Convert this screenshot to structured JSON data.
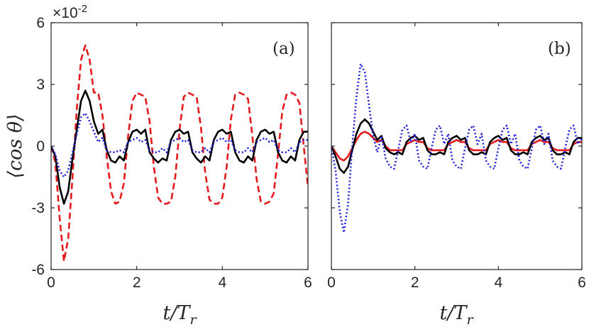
{
  "chart_data": [
    {
      "type": "line",
      "panel_label": "(a)",
      "ylabel": "⟨cos θ⟩",
      "xlabel_main": "t/T",
      "xlabel_sub": "r",
      "y_exponent_base": "×10",
      "y_exponent_power": "-2",
      "xlim": [
        0,
        6
      ],
      "ylim": [
        -6,
        6
      ],
      "x_ticks": [
        "0",
        "2",
        "4",
        "6"
      ],
      "y_ticks": [
        "6",
        "3",
        "0",
        "-3",
        "-6"
      ],
      "series": [
        {
          "name": "red-dashed",
          "color": "#e41a1c",
          "dash": "dashed",
          "x": [
            0,
            0.1,
            0.2,
            0.3,
            0.4,
            0.5,
            0.6,
            0.7,
            0.8,
            0.9,
            1.0,
            1.1,
            1.2,
            1.3,
            1.4,
            1.5,
            1.6,
            1.7,
            1.8,
            1.9,
            2.0,
            2.1,
            2.2,
            2.3,
            2.4,
            2.5,
            2.6,
            2.7,
            2.8,
            2.9,
            3.0,
            3.1,
            3.2,
            3.3,
            3.4,
            3.5,
            3.6,
            3.7,
            3.8,
            3.9,
            4.0,
            4.1,
            4.2,
            4.3,
            4.4,
            4.5,
            4.6,
            4.7,
            4.8,
            4.9,
            5.0,
            5.1,
            5.2,
            5.3,
            5.4,
            5.5,
            5.6,
            5.7,
            5.8,
            5.9,
            6.0
          ],
          "y": [
            0,
            -0.8,
            -3.5,
            -5.6,
            -4.5,
            -1.5,
            1.8,
            4.2,
            4.9,
            4.2,
            2.6,
            2.6,
            1.5,
            -0.5,
            -2.2,
            -2.8,
            -2.7,
            -1.8,
            0.5,
            2.2,
            2.6,
            2.5,
            2.4,
            1.2,
            -1.0,
            -2.5,
            -2.8,
            -2.8,
            -2.7,
            -1.5,
            0.8,
            2.4,
            2.6,
            2.5,
            2.4,
            0.9,
            -1.3,
            -2.6,
            -2.8,
            -2.8,
            -2.5,
            -1.0,
            1.3,
            2.5,
            2.6,
            2.5,
            2.3,
            0.5,
            -1.6,
            -2.7,
            -2.8,
            -2.7,
            -2.3,
            -0.4,
            1.7,
            2.5,
            2.6,
            2.5,
            2.1,
            0.0,
            -2.0
          ]
        },
        {
          "name": "black-solid",
          "color": "#000000",
          "dash": "solid",
          "x": [
            0,
            0.1,
            0.2,
            0.3,
            0.4,
            0.5,
            0.6,
            0.7,
            0.8,
            0.9,
            1.0,
            1.1,
            1.2,
            1.3,
            1.4,
            1.5,
            1.6,
            1.7,
            1.8,
            1.9,
            2.0,
            2.1,
            2.2,
            2.3,
            2.4,
            2.5,
            2.6,
            2.7,
            2.8,
            2.9,
            3.0,
            3.1,
            3.2,
            3.3,
            3.4,
            3.5,
            3.6,
            3.7,
            3.8,
            3.9,
            4.0,
            4.1,
            4.2,
            4.3,
            4.4,
            4.5,
            4.6,
            4.7,
            4.8,
            4.9,
            5.0,
            5.1,
            5.2,
            5.3,
            5.4,
            5.5,
            5.6,
            5.7,
            5.8,
            5.9,
            6.0
          ],
          "y": [
            0,
            -0.5,
            -2.0,
            -2.8,
            -2.2,
            -0.6,
            0.8,
            2.2,
            2.7,
            2.2,
            1.2,
            0.6,
            0.8,
            -0.2,
            -0.7,
            -0.8,
            -0.5,
            -0.7,
            0.2,
            0.7,
            0.8,
            0.6,
            0.8,
            -0.3,
            -0.6,
            -0.8,
            -0.6,
            -0.7,
            0.3,
            0.7,
            0.8,
            0.6,
            0.7,
            -0.3,
            -0.6,
            -0.8,
            -0.5,
            -0.7,
            0.3,
            0.7,
            0.8,
            0.6,
            0.7,
            -0.3,
            -0.7,
            -0.8,
            -0.5,
            -0.7,
            0.3,
            0.7,
            0.8,
            0.6,
            0.7,
            -0.3,
            -0.7,
            -0.8,
            -0.5,
            -0.7,
            0.3,
            0.7,
            0.7
          ]
        },
        {
          "name": "blue-dotted",
          "color": "#1f1fdc",
          "dash": "dotted",
          "x": [
            0,
            0.1,
            0.2,
            0.3,
            0.4,
            0.5,
            0.6,
            0.7,
            0.8,
            0.9,
            1.0,
            1.1,
            1.2,
            1.3,
            1.4,
            1.5,
            1.6,
            1.7,
            1.8,
            1.9,
            2.0,
            2.1,
            2.2,
            2.3,
            2.4,
            2.5,
            2.6,
            2.7,
            2.8,
            2.9,
            3.0,
            3.1,
            3.2,
            3.3,
            3.4,
            3.5,
            3.6,
            3.7,
            3.8,
            3.9,
            4.0,
            4.1,
            4.2,
            4.3,
            4.4,
            4.5,
            4.6,
            4.7,
            4.8,
            4.9,
            5.0,
            5.1,
            5.2,
            5.3,
            5.4,
            5.5,
            5.6,
            5.7,
            5.8,
            5.9,
            6.0
          ],
          "y": [
            0,
            -0.4,
            -1.2,
            -1.5,
            -1.2,
            -0.3,
            0.6,
            1.4,
            1.6,
            1.2,
            0.7,
            0.2,
            0.4,
            -0.2,
            -0.3,
            -0.3,
            -0.2,
            -0.3,
            0.2,
            0.3,
            0.4,
            0.2,
            0.3,
            -0.2,
            -0.3,
            -0.3,
            -0.1,
            -0.3,
            0.2,
            0.3,
            0.4,
            0.2,
            0.3,
            -0.2,
            -0.3,
            -0.3,
            -0.1,
            -0.3,
            0.2,
            0.3,
            0.4,
            0.2,
            0.3,
            -0.2,
            -0.3,
            -0.3,
            -0.1,
            -0.3,
            0.2,
            0.3,
            0.4,
            0.2,
            0.3,
            -0.2,
            -0.3,
            -0.3,
            -0.1,
            -0.3,
            0.2,
            0.3,
            0.3
          ]
        }
      ]
    },
    {
      "type": "line",
      "panel_label": "(b)",
      "xlabel_main": "t/T",
      "xlabel_sub": "r",
      "xlim": [
        0,
        6
      ],
      "ylim": [
        -6,
        6
      ],
      "x_ticks": [
        "0",
        "2",
        "4",
        "6"
      ],
      "series": [
        {
          "name": "red-solid",
          "color": "#e41a1c",
          "dash": "solid",
          "x": [
            0,
            0.1,
            0.2,
            0.3,
            0.4,
            0.5,
            0.6,
            0.7,
            0.8,
            0.9,
            1.0,
            1.1,
            1.2,
            1.3,
            1.4,
            1.5,
            1.6,
            1.7,
            1.8,
            1.9,
            2.0,
            2.1,
            2.2,
            2.3,
            2.4,
            2.5,
            2.6,
            2.7,
            2.8,
            2.9,
            3.0,
            3.1,
            3.2,
            3.3,
            3.4,
            3.5,
            3.6,
            3.7,
            3.8,
            3.9,
            4.0,
            4.1,
            4.2,
            4.3,
            4.4,
            4.5,
            4.6,
            4.7,
            4.8,
            4.9,
            5.0,
            5.1,
            5.2,
            5.3,
            5.4,
            5.5,
            5.6,
            5.7,
            5.8,
            5.9,
            6.0
          ],
          "y": [
            0,
            -0.3,
            -0.6,
            -0.7,
            -0.5,
            -0.1,
            0.3,
            0.6,
            0.7,
            0.6,
            0.4,
            0.2,
            0.3,
            0.0,
            -0.2,
            -0.2,
            -0.2,
            -0.2,
            0.1,
            0.2,
            0.3,
            0.2,
            0.2,
            -0.1,
            -0.2,
            -0.2,
            -0.2,
            -0.2,
            0.1,
            0.2,
            0.3,
            0.2,
            0.2,
            -0.1,
            -0.2,
            -0.2,
            -0.2,
            -0.2,
            0.1,
            0.2,
            0.3,
            0.2,
            0.2,
            -0.1,
            -0.2,
            -0.2,
            -0.2,
            -0.2,
            0.1,
            0.2,
            0.3,
            0.2,
            0.2,
            -0.1,
            -0.2,
            -0.2,
            -0.2,
            -0.2,
            0.1,
            0.2,
            0.2
          ]
        },
        {
          "name": "black-solid",
          "color": "#000000",
          "dash": "solid",
          "x": [
            0,
            0.1,
            0.2,
            0.3,
            0.4,
            0.5,
            0.6,
            0.7,
            0.8,
            0.9,
            1.0,
            1.1,
            1.2,
            1.3,
            1.4,
            1.5,
            1.6,
            1.7,
            1.8,
            1.9,
            2.0,
            2.1,
            2.2,
            2.3,
            2.4,
            2.5,
            2.6,
            2.7,
            2.8,
            2.9,
            3.0,
            3.1,
            3.2,
            3.3,
            3.4,
            3.5,
            3.6,
            3.7,
            3.8,
            3.9,
            4.0,
            4.1,
            4.2,
            4.3,
            4.4,
            4.5,
            4.6,
            4.7,
            4.8,
            4.9,
            5.0,
            5.1,
            5.2,
            5.3,
            5.4,
            5.5,
            5.6,
            5.7,
            5.8,
            5.9,
            6.0
          ],
          "y": [
            0,
            -0.5,
            -1.1,
            -1.3,
            -1.0,
            -0.2,
            0.6,
            1.1,
            1.3,
            1.1,
            0.7,
            0.3,
            0.5,
            -0.1,
            -0.3,
            -0.4,
            -0.3,
            -0.4,
            0.2,
            0.4,
            0.5,
            0.3,
            0.4,
            -0.2,
            -0.4,
            -0.4,
            -0.3,
            -0.4,
            0.2,
            0.4,
            0.5,
            0.3,
            0.4,
            -0.2,
            -0.4,
            -0.4,
            -0.3,
            -0.4,
            0.2,
            0.4,
            0.5,
            0.3,
            0.4,
            -0.2,
            -0.4,
            -0.4,
            -0.3,
            -0.4,
            0.2,
            0.4,
            0.5,
            0.3,
            0.4,
            -0.2,
            -0.4,
            -0.4,
            -0.3,
            -0.4,
            0.2,
            0.4,
            0.4
          ]
        },
        {
          "name": "blue-dotted",
          "color": "#1f1fdc",
          "dash": "dotted",
          "x": [
            0,
            0.1,
            0.2,
            0.3,
            0.4,
            0.5,
            0.6,
            0.7,
            0.8,
            0.9,
            1.0,
            1.1,
            1.2,
            1.3,
            1.4,
            1.5,
            1.6,
            1.7,
            1.8,
            1.9,
            2.0,
            2.1,
            2.2,
            2.3,
            2.4,
            2.5,
            2.6,
            2.7,
            2.8,
            2.9,
            3.0,
            3.1,
            3.2,
            3.3,
            3.4,
            3.5,
            3.6,
            3.7,
            3.8,
            3.9,
            4.0,
            4.1,
            4.2,
            4.3,
            4.4,
            4.5,
            4.6,
            4.7,
            4.8,
            4.9,
            5.0,
            5.1,
            5.2,
            5.3,
            5.4,
            5.5,
            5.6,
            5.7,
            5.8,
            5.9,
            6.0
          ],
          "y": [
            0,
            -1.2,
            -3.2,
            -4.2,
            -2.8,
            0.0,
            2.4,
            4.0,
            3.6,
            2.0,
            0.5,
            -0.3,
            0.5,
            -0.6,
            -1.0,
            -1.1,
            -0.2,
            0.8,
            1.0,
            0.2,
            0.6,
            -0.7,
            -1.0,
            -1.1,
            -0.1,
            0.8,
            1.0,
            0.1,
            0.6,
            -0.7,
            -1.0,
            -1.1,
            -0.1,
            0.8,
            1.0,
            0.1,
            0.6,
            -0.7,
            -1.0,
            -1.1,
            -0.1,
            0.8,
            1.0,
            0.1,
            0.6,
            -0.7,
            -1.0,
            -1.1,
            -0.1,
            0.8,
            1.0,
            0.1,
            0.6,
            -0.7,
            -1.0,
            -1.1,
            -0.1,
            0.8,
            1.0,
            0.1,
            0.4
          ]
        }
      ]
    }
  ]
}
